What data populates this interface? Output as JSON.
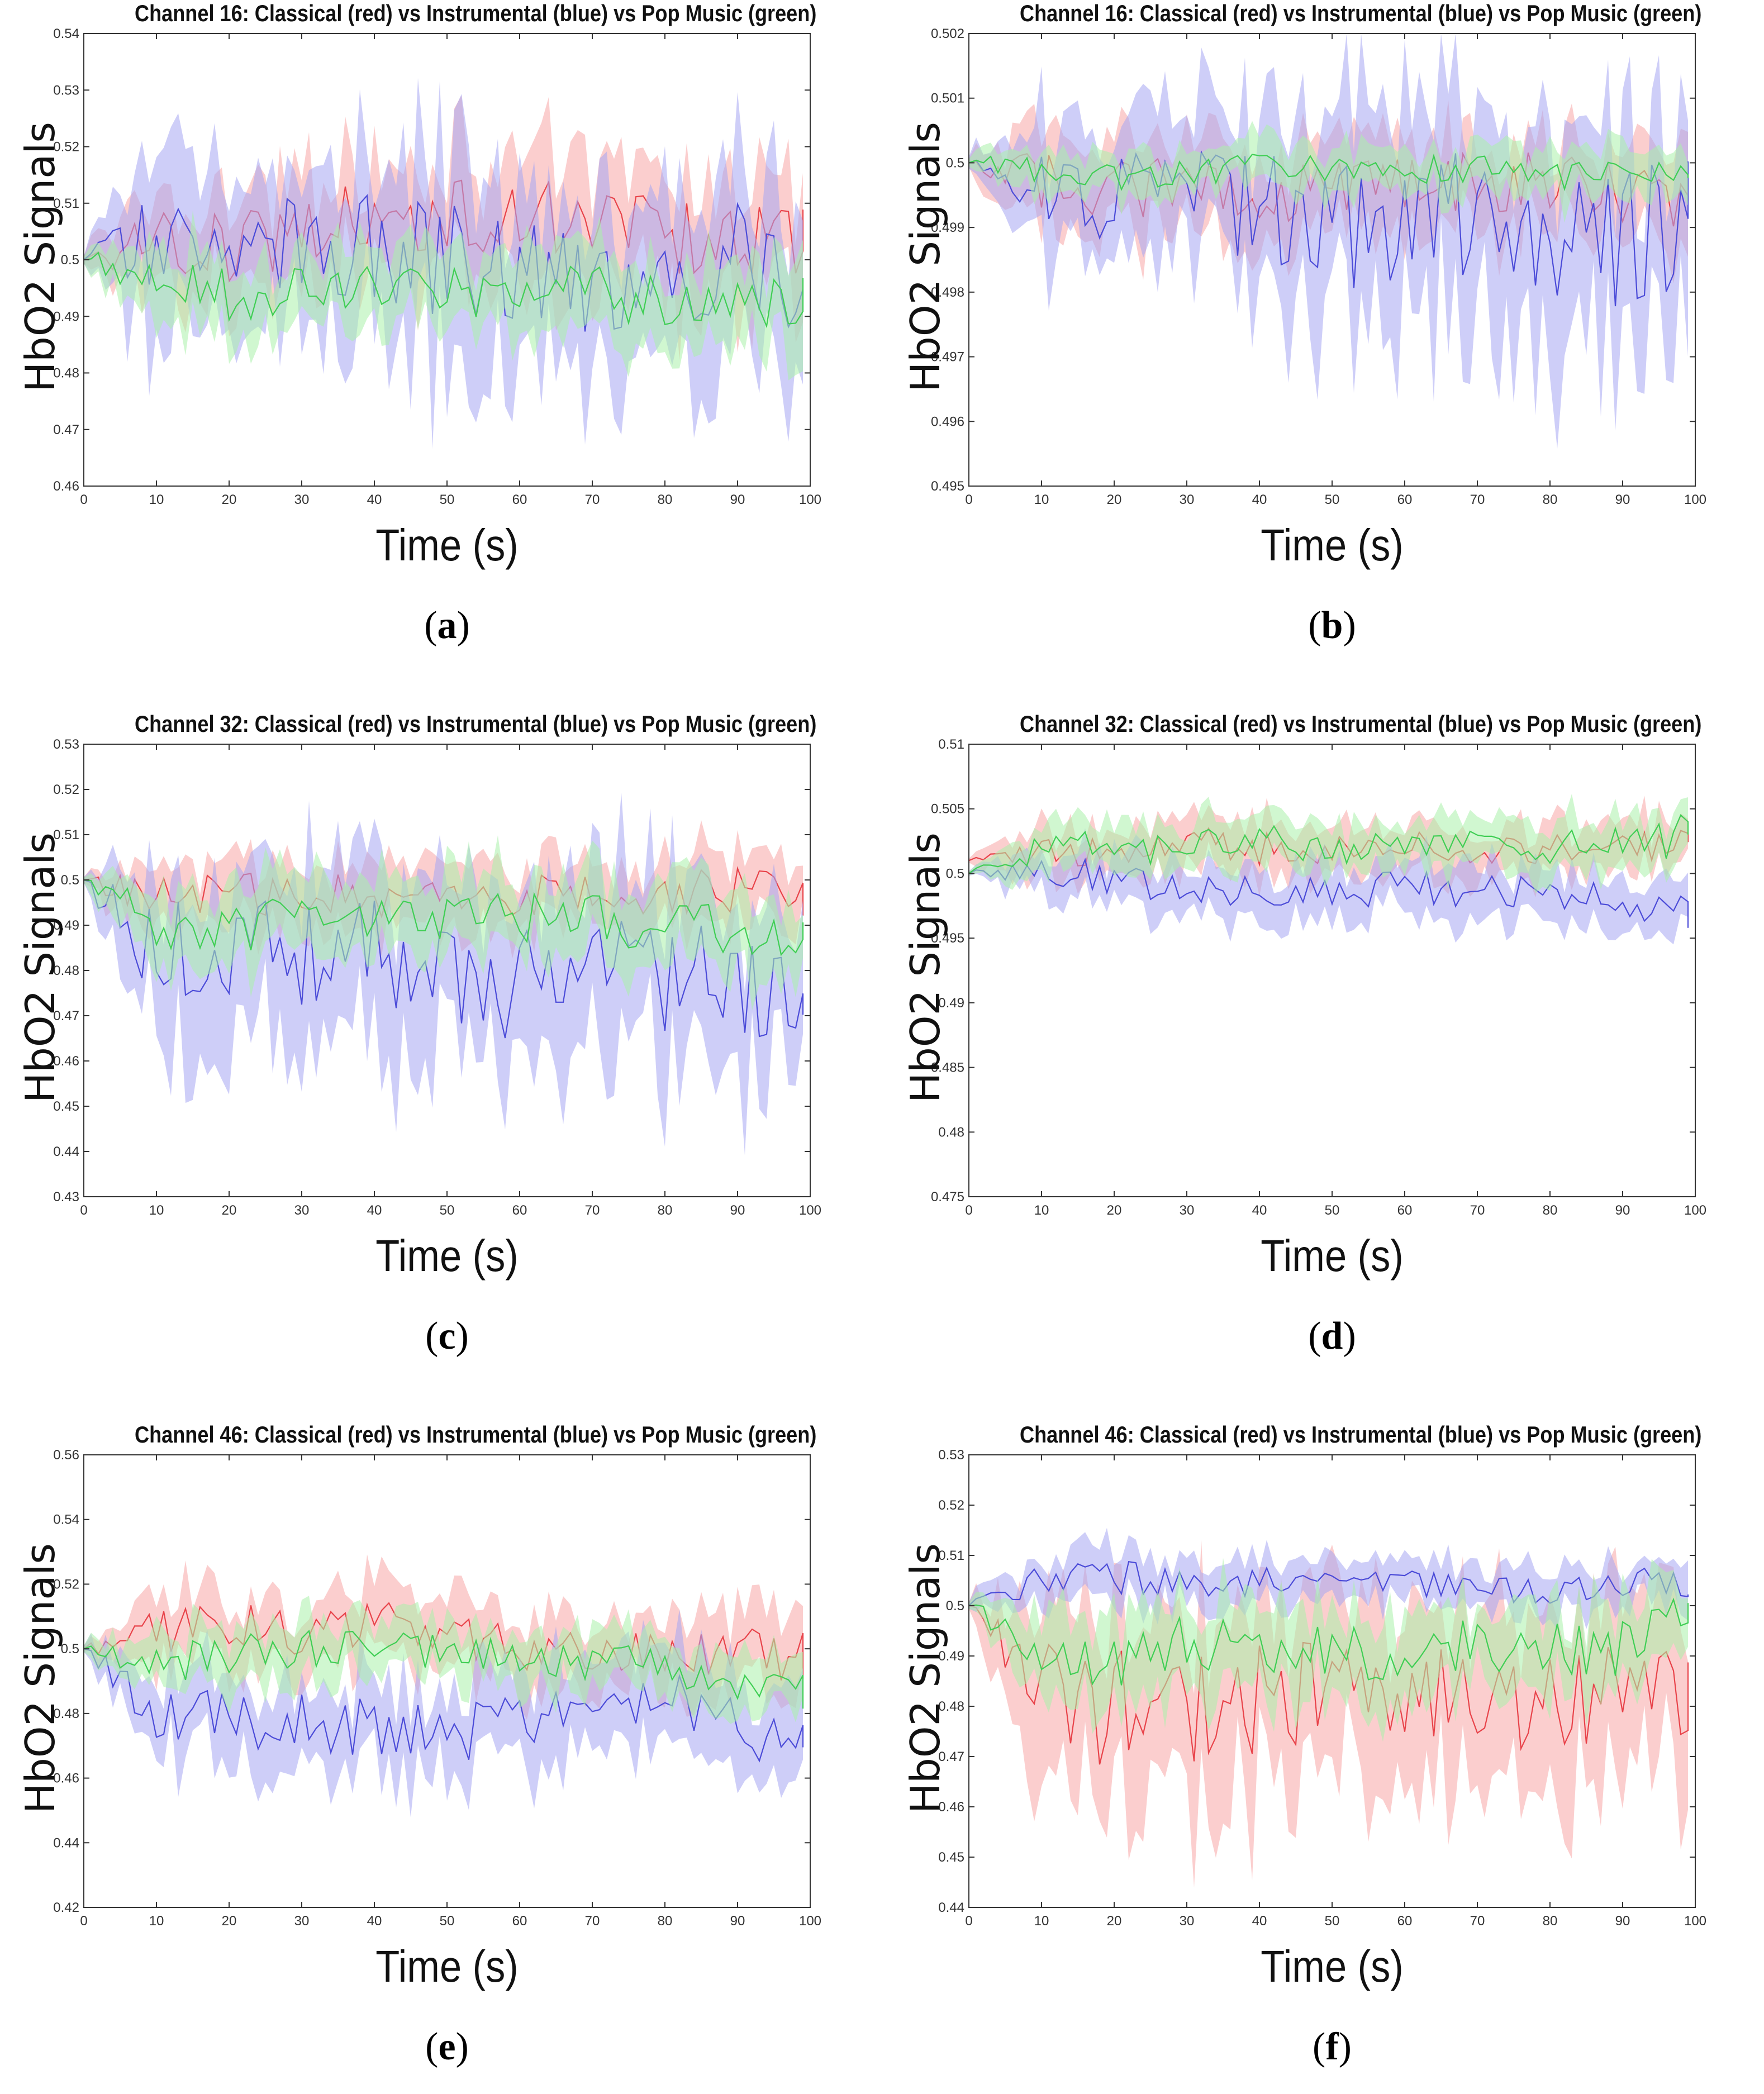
{
  "chart_data": [
    {
      "type": "line",
      "panel_label": "a",
      "title": "Channel 16: Classical (red) vs Instrumental (blue) vs Pop Music (green)",
      "xlabel": "Time (s)",
      "ylabel": "HbO2 Signals",
      "xlim": [
        0,
        100
      ],
      "ylim": [
        0.46,
        0.54
      ],
      "xticks": [
        0,
        10,
        20,
        30,
        40,
        50,
        60,
        70,
        80,
        90,
        100
      ],
      "yticks": [
        0.46,
        0.47,
        0.48,
        0.49,
        0.5,
        0.51,
        0.52,
        0.53,
        0.54
      ],
      "x_tick_labels": [
        "0",
        "10",
        "20",
        "30",
        "40",
        "50",
        "60",
        "70",
        "80",
        "90",
        "100"
      ],
      "y_tick_labels": [
        "0.46",
        "0.47",
        "0.48",
        "0.49",
        "0.5",
        "0.51",
        "0.52",
        "0.53",
        "0.54"
      ],
      "x": [
        0,
        10,
        20,
        30,
        40,
        50,
        60,
        70,
        80,
        90,
        99
      ],
      "series": [
        {
          "name": "Classical (red)",
          "color": "#e8434a",
          "fill": "#f7a6a6",
          "mean": [
            0.5,
            0.503,
            0.502,
            0.505,
            0.508,
            0.507,
            0.508,
            0.506,
            0.505,
            0.503,
            0.502
          ],
          "spread": [
            0.002,
            0.01,
            0.01,
            0.01,
            0.012,
            0.012,
            0.012,
            0.012,
            0.012,
            0.012,
            0.012
          ]
        },
        {
          "name": "Instrumental (blue)",
          "color": "#4b4bd8",
          "fill": "#a6a6f2",
          "mean": [
            0.5,
            0.505,
            0.502,
            0.503,
            0.502,
            0.5,
            0.498,
            0.496,
            0.497,
            0.5,
            0.496
          ],
          "spread": [
            0.002,
            0.018,
            0.015,
            0.015,
            0.016,
            0.02,
            0.016,
            0.016,
            0.016,
            0.018,
            0.016
          ]
        },
        {
          "name": "Pop Music (green)",
          "color": "#3fce54",
          "fill": "#a9f0a9",
          "mean": [
            0.5,
            0.497,
            0.494,
            0.494,
            0.496,
            0.495,
            0.494,
            0.494,
            0.493,
            0.494,
            0.492
          ],
          "spread": [
            0.002,
            0.008,
            0.008,
            0.008,
            0.008,
            0.008,
            0.008,
            0.008,
            0.008,
            0.008,
            0.01
          ]
        }
      ]
    },
    {
      "type": "line",
      "panel_label": "b",
      "title": "Channel 16: Classical (red) vs Instrumental (blue) vs Pop Music (green)",
      "xlabel": "Time (s)",
      "ylabel": "HbO2 Signals",
      "xlim": [
        0,
        100
      ],
      "ylim": [
        0.495,
        0.502
      ],
      "xticks": [
        0,
        10,
        20,
        30,
        40,
        50,
        60,
        70,
        80,
        90,
        100
      ],
      "yticks": [
        0.495,
        0.496,
        0.497,
        0.498,
        0.499,
        0.5,
        0.501,
        0.502
      ],
      "x_tick_labels": [
        "0",
        "10",
        "20",
        "30",
        "40",
        "50",
        "60",
        "70",
        "80",
        "90",
        "100"
      ],
      "y_tick_labels": [
        "0.495",
        "0.496",
        "0.497",
        "0.498",
        "0.499",
        "0.5",
        "0.501",
        "0.502"
      ],
      "x": [
        0,
        10,
        20,
        30,
        40,
        50,
        60,
        70,
        80,
        90,
        99
      ],
      "series": [
        {
          "name": "Classical (red)",
          "color": "#e8434a",
          "fill": "#f7a6a6",
          "mean": [
            0.5,
            0.4997,
            0.4996,
            0.4997,
            0.4996,
            0.4996,
            0.4996,
            0.4997,
            0.4997,
            0.4995,
            0.4994
          ],
          "spread": [
            0.0002,
            0.0008,
            0.0008,
            0.0008,
            0.0009,
            0.0008,
            0.0008,
            0.0008,
            0.0008,
            0.0008,
            0.0008
          ]
        },
        {
          "name": "Instrumental (blue)",
          "color": "#4b4bd8",
          "fill": "#a6a6f2",
          "mean": [
            0.5,
            0.4996,
            0.4994,
            0.4996,
            0.4993,
            0.499,
            0.4992,
            0.4994,
            0.499,
            0.4988,
            0.499
          ],
          "spread": [
            0.0003,
            0.0011,
            0.0011,
            0.0012,
            0.0015,
            0.0018,
            0.0018,
            0.002,
            0.002,
            0.002,
            0.0018
          ]
        },
        {
          "name": "Pop Music (green)",
          "color": "#3fce54",
          "fill": "#a9f0a9",
          "mean": [
            0.5,
            0.4999,
            0.4998,
            0.4999,
            0.4999,
            0.4999,
            0.4999,
            0.4999,
            0.4998,
            0.4999,
            0.4998
          ],
          "spread": [
            0.0002,
            0.0004,
            0.0004,
            0.0004,
            0.0004,
            0.0004,
            0.0004,
            0.0004,
            0.0004,
            0.0004,
            0.0004
          ]
        }
      ]
    },
    {
      "type": "line",
      "panel_label": "c",
      "title": "Channel 32: Classical (red) vs Instrumental (blue) vs Pop Music (green)",
      "xlabel": "Time (s)",
      "ylabel": "HbO2 Signals",
      "xlim": [
        0,
        100
      ],
      "ylim": [
        0.43,
        0.53
      ],
      "xticks": [
        0,
        10,
        20,
        30,
        40,
        50,
        60,
        70,
        80,
        90,
        100
      ],
      "yticks": [
        0.43,
        0.44,
        0.45,
        0.46,
        0.47,
        0.48,
        0.49,
        0.5,
        0.51,
        0.52,
        0.53
      ],
      "x_tick_labels": [
        "0",
        "10",
        "20",
        "30",
        "40",
        "50",
        "60",
        "70",
        "80",
        "90",
        "100"
      ],
      "y_tick_labels": [
        "0.43",
        "0.44",
        "0.45",
        "0.46",
        "0.47",
        "0.48",
        "0.49",
        "0.5",
        "0.51",
        "0.52",
        "0.53"
      ],
      "x": [
        0,
        10,
        20,
        30,
        40,
        50,
        60,
        70,
        80,
        90,
        99
      ],
      "series": [
        {
          "name": "Classical (red)",
          "color": "#e8434a",
          "fill": "#f7a6a6",
          "mean": [
            0.5,
            0.496,
            0.497,
            0.497,
            0.496,
            0.495,
            0.496,
            0.497,
            0.497,
            0.498,
            0.497
          ],
          "spread": [
            0.002,
            0.008,
            0.008,
            0.008,
            0.008,
            0.008,
            0.008,
            0.008,
            0.008,
            0.009,
            0.009
          ]
        },
        {
          "name": "Instrumental (blue)",
          "color": "#4b4bd8",
          "fill": "#a6a6f2",
          "mean": [
            0.5,
            0.485,
            0.486,
            0.484,
            0.483,
            0.479,
            0.478,
            0.486,
            0.478,
            0.48,
            0.47
          ],
          "spread": [
            0.002,
            0.02,
            0.02,
            0.02,
            0.022,
            0.022,
            0.022,
            0.022,
            0.022,
            0.022,
            0.022
          ]
        },
        {
          "name": "Pop Music (green)",
          "color": "#3fce54",
          "fill": "#a9f0a9",
          "mean": [
            0.5,
            0.491,
            0.49,
            0.491,
            0.492,
            0.491,
            0.491,
            0.492,
            0.49,
            0.49,
            0.485
          ],
          "spread": [
            0.002,
            0.01,
            0.01,
            0.01,
            0.01,
            0.01,
            0.01,
            0.01,
            0.01,
            0.01,
            0.01
          ]
        }
      ]
    },
    {
      "type": "line",
      "panel_label": "d",
      "title": "Channel 32: Classical (red) vs Instrumental (blue) vs Pop Music (green)",
      "xlabel": "Time (s)",
      "ylabel": "HbO2 Signals",
      "xlim": [
        0,
        100
      ],
      "ylim": [
        0.475,
        0.51
      ],
      "xticks": [
        0,
        10,
        20,
        30,
        40,
        50,
        60,
        70,
        80,
        90,
        100
      ],
      "yticks": [
        0.475,
        0.48,
        0.485,
        0.49,
        0.495,
        0.5,
        0.505,
        0.51
      ],
      "x_tick_labels": [
        "0",
        "10",
        "20",
        "30",
        "40",
        "50",
        "60",
        "70",
        "80",
        "90",
        "100"
      ],
      "y_tick_labels": [
        "0.475",
        "0.48",
        "0.485",
        "0.49",
        "0.495",
        "0.5",
        "0.505",
        "0.51"
      ],
      "x": [
        0,
        10,
        20,
        30,
        40,
        50,
        60,
        70,
        80,
        90,
        99
      ],
      "series": [
        {
          "name": "Classical (red)",
          "color": "#e8434a",
          "fill": "#f7a6a6",
          "mean": [
            0.501,
            0.5015,
            0.502,
            0.5025,
            0.502,
            0.502,
            0.5022,
            0.502,
            0.502,
            0.5022,
            0.5022
          ],
          "spread": [
            0.0005,
            0.002,
            0.002,
            0.0022,
            0.0022,
            0.0022,
            0.0022,
            0.0022,
            0.0022,
            0.0022,
            0.0022
          ]
        },
        {
          "name": "Instrumental (blue)",
          "color": "#4b4bd8",
          "fill": "#a6a6f2",
          "mean": [
            0.5,
            0.5005,
            0.4995,
            0.4985,
            0.4985,
            0.4985,
            0.499,
            0.4985,
            0.4985,
            0.4978,
            0.497
          ],
          "spread": [
            0.0006,
            0.002,
            0.002,
            0.0022,
            0.0022,
            0.0022,
            0.0022,
            0.0025,
            0.0022,
            0.0022,
            0.0022
          ]
        },
        {
          "name": "Pop Music (green)",
          "color": "#3fce54",
          "fill": "#a9f0a9",
          "mean": [
            0.5,
            0.502,
            0.502,
            0.502,
            0.5025,
            0.502,
            0.502,
            0.502,
            0.502,
            0.5025,
            0.503
          ],
          "spread": [
            0.0005,
            0.0022,
            0.0022,
            0.0022,
            0.0022,
            0.0022,
            0.0022,
            0.0022,
            0.0022,
            0.0025,
            0.003
          ]
        }
      ]
    },
    {
      "type": "line",
      "panel_label": "e",
      "title": "Channel 46: Classical (red) vs Instrumental (blue) vs Pop Music (green)",
      "xlabel": "Time (s)",
      "ylabel": "HbO2 Signals",
      "xlim": [
        0,
        100
      ],
      "ylim": [
        0.42,
        0.56
      ],
      "xticks": [
        0,
        10,
        20,
        30,
        40,
        50,
        60,
        70,
        80,
        90,
        100
      ],
      "yticks": [
        0.42,
        0.44,
        0.46,
        0.48,
        0.5,
        0.52,
        0.54,
        0.56
      ],
      "x_tick_labels": [
        "0",
        "10",
        "20",
        "30",
        "40",
        "50",
        "60",
        "70",
        "80",
        "90",
        "100"
      ],
      "y_tick_labels": [
        "0.42",
        "0.44",
        "0.46",
        "0.48",
        "0.5",
        "0.52",
        "0.54",
        "0.56"
      ],
      "x": [
        0,
        10,
        20,
        30,
        40,
        50,
        60,
        70,
        80,
        90,
        99
      ],
      "series": [
        {
          "name": "Classical (red)",
          "color": "#e8434a",
          "fill": "#f7a6a6",
          "mean": [
            0.5,
            0.505,
            0.508,
            0.505,
            0.508,
            0.505,
            0.5,
            0.498,
            0.5,
            0.5,
            0.497
          ],
          "spread": [
            0.003,
            0.012,
            0.012,
            0.012,
            0.014,
            0.012,
            0.012,
            0.012,
            0.014,
            0.014,
            0.014
          ]
        },
        {
          "name": "Instrumental (blue)",
          "color": "#4b4bd8",
          "fill": "#a6a6f2",
          "mean": [
            0.5,
            0.48,
            0.478,
            0.478,
            0.475,
            0.472,
            0.478,
            0.48,
            0.485,
            0.478,
            0.468
          ],
          "spread": [
            0.003,
            0.015,
            0.015,
            0.015,
            0.015,
            0.016,
            0.016,
            0.016,
            0.016,
            0.016,
            0.016
          ]
        },
        {
          "name": "Pop Music (green)",
          "color": "#3fce54",
          "fill": "#a9f0a9",
          "mean": [
            0.5,
            0.495,
            0.498,
            0.5,
            0.5,
            0.5,
            0.495,
            0.495,
            0.495,
            0.49,
            0.487
          ],
          "spread": [
            0.003,
            0.01,
            0.01,
            0.01,
            0.01,
            0.01,
            0.01,
            0.01,
            0.01,
            0.01,
            0.01
          ]
        }
      ]
    },
    {
      "type": "line",
      "panel_label": "f",
      "title": "Channel 46: Classical (red) vs Instrumental (blue) vs Pop Music (green)",
      "xlabel": "Time (s)",
      "ylabel": "HbO2 Signals",
      "xlim": [
        0,
        100
      ],
      "ylim": [
        0.44,
        0.53
      ],
      "xticks": [
        0,
        10,
        20,
        30,
        40,
        50,
        60,
        70,
        80,
        90,
        100
      ],
      "yticks": [
        0.44,
        0.45,
        0.46,
        0.47,
        0.48,
        0.49,
        0.5,
        0.51,
        0.52,
        0.53
      ],
      "x_tick_labels": [
        "0",
        "10",
        "20",
        "30",
        "40",
        "50",
        "60",
        "70",
        "80",
        "90",
        "100"
      ],
      "y_tick_labels": [
        "0.44",
        "0.45",
        "0.46",
        "0.47",
        "0.48",
        "0.49",
        "0.5",
        "0.51",
        "0.52",
        "0.53"
      ],
      "x": [
        0,
        10,
        20,
        30,
        40,
        50,
        60,
        70,
        80,
        90,
        99
      ],
      "series": [
        {
          "name": "Classical (red)",
          "color": "#e8434a",
          "fill": "#f7a6a6",
          "mean": [
            0.5,
            0.482,
            0.48,
            0.48,
            0.482,
            0.482,
            0.48,
            0.482,
            0.482,
            0.48,
            0.485
          ],
          "spread": [
            0.002,
            0.02,
            0.02,
            0.02,
            0.02,
            0.02,
            0.02,
            0.02,
            0.022,
            0.02,
            0.02
          ]
        },
        {
          "name": "Instrumental (blue)",
          "color": "#4b4bd8",
          "fill": "#a6a6f2",
          "mean": [
            0.5,
            0.505,
            0.506,
            0.504,
            0.505,
            0.504,
            0.504,
            0.503,
            0.503,
            0.504,
            0.505
          ],
          "spread": [
            0.002,
            0.005,
            0.006,
            0.005,
            0.005,
            0.005,
            0.005,
            0.005,
            0.005,
            0.005,
            0.006
          ]
        },
        {
          "name": "Pop Music (green)",
          "color": "#3fce54",
          "fill": "#a9f0a9",
          "mean": [
            0.5,
            0.49,
            0.489,
            0.492,
            0.491,
            0.49,
            0.491,
            0.492,
            0.491,
            0.492,
            0.5
          ],
          "spread": [
            0.002,
            0.01,
            0.01,
            0.01,
            0.01,
            0.01,
            0.01,
            0.01,
            0.01,
            0.01,
            0.006
          ]
        }
      ]
    }
  ]
}
